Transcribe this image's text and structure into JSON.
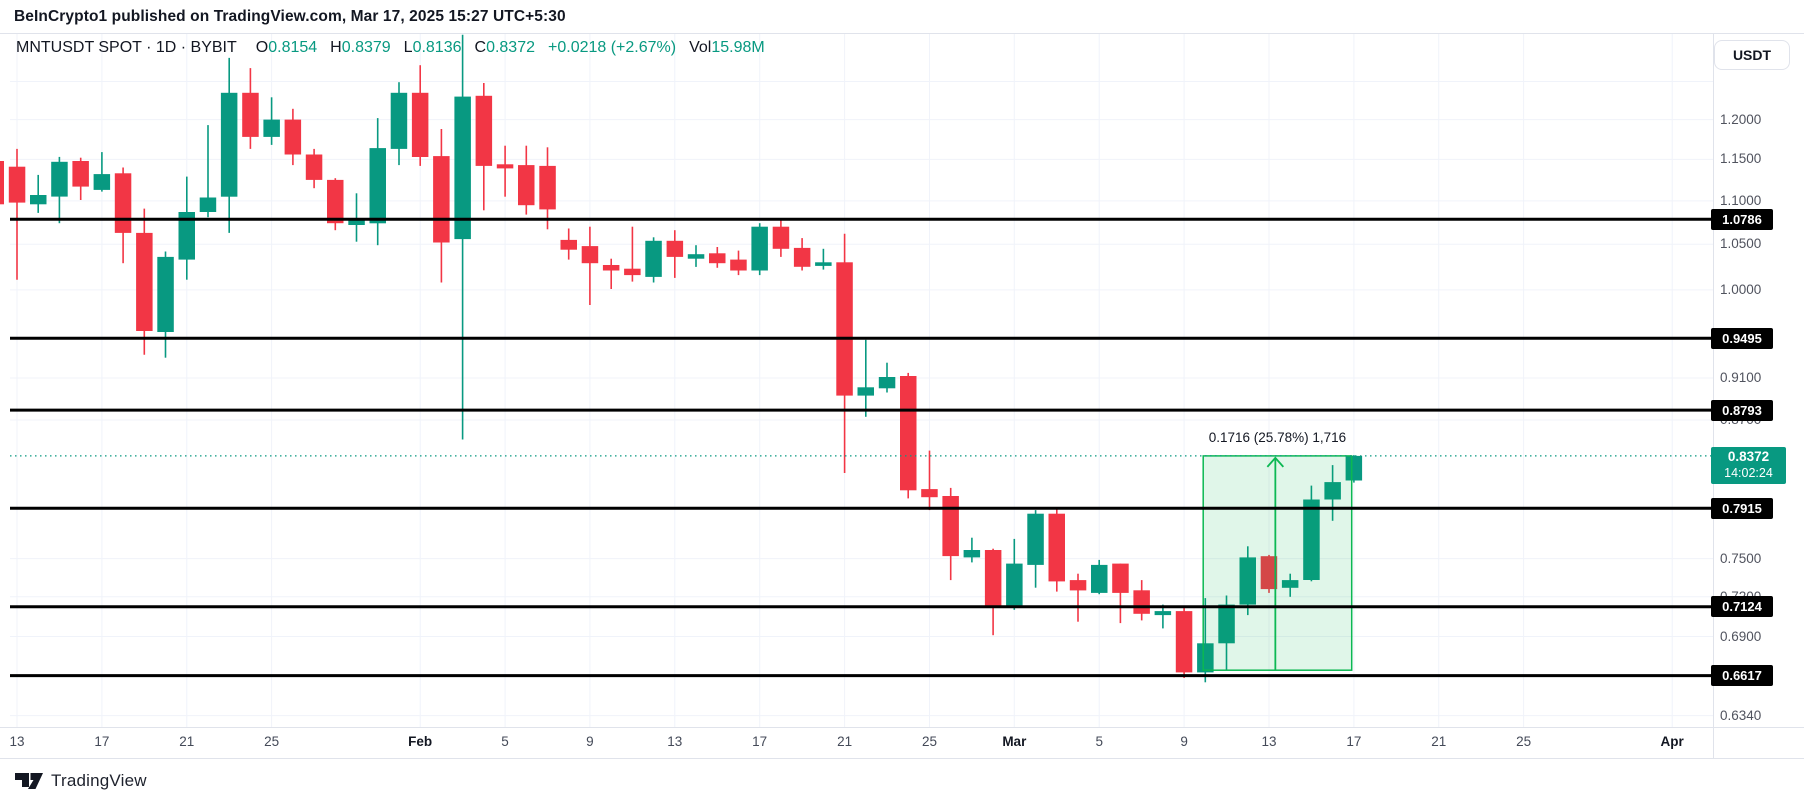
{
  "header": {
    "byline": "BeInCrypto1 published on TradingView.com, Mar 17, 2025 15:27 UTC+5:30"
  },
  "legend": {
    "symbol": "MNTUSDT SPOT · 1D · BYBIT",
    "items": [
      {
        "label": "O",
        "value": "0.8154"
      },
      {
        "label": "H",
        "value": "0.8379"
      },
      {
        "label": "L",
        "value": "0.8136"
      },
      {
        "label": "C",
        "value": "0.8372"
      }
    ],
    "change": "+0.0218 (+2.67%)",
    "vol_label": "Vol",
    "vol_value": "15.98M"
  },
  "axis": {
    "currency_button": "USDT",
    "plain_labels": [
      {
        "text": "1.2000",
        "price": 1.2
      },
      {
        "text": "1.1500",
        "price": 1.15
      },
      {
        "text": "1.1000",
        "price": 1.1
      },
      {
        "text": "1.0500",
        "price": 1.05
      },
      {
        "text": "1.0000",
        "price": 1.0
      },
      {
        "text": "0.9100",
        "price": 0.91
      },
      {
        "text": "0.8700",
        "price": 0.87
      },
      {
        "text": "0.7500",
        "price": 0.75
      },
      {
        "text": "0.7200",
        "price": 0.72
      },
      {
        "text": "0.6900",
        "price": 0.69
      },
      {
        "text": "0.6340",
        "price": 0.634
      }
    ],
    "current": {
      "price_text": "0.8372",
      "countdown": "14:02:24",
      "price": 0.8372
    }
  },
  "footer": {
    "brand": "TradingView"
  },
  "colors": {
    "up": "#089981",
    "down": "#f23645",
    "accent": "#089981",
    "ray": "#000000",
    "badge_bg": "#000000",
    "badge_text": "#ffffff",
    "current_badge_bg": "#089981",
    "grid": "#f0f3fa",
    "frame": "#e0e3eb",
    "box_line": "#0cb853",
    "box_fill": "rgba(12,184,83,0.13)",
    "text_dark": "#131722"
  },
  "chart_data": {
    "type": "candlestick",
    "symbol": "MNTUSDT",
    "interval": "1D",
    "exchange": "BYBIT",
    "scale": "log",
    "y_axis": {
      "top_price": 1.3166,
      "bottom_price": 0.6263
    },
    "grid_prices": [
      1.25,
      1.2,
      1.15,
      1.1,
      1.05,
      1.0,
      0.95,
      0.91,
      0.87,
      0.75,
      0.72,
      0.69,
      0.634
    ],
    "ray_levels": [
      1.0786,
      0.9495,
      0.8793,
      0.7915,
      0.7124,
      0.6617
    ],
    "current_price": 0.8372,
    "time_ticks": [
      {
        "label": "13",
        "i": 0
      },
      {
        "label": "17",
        "i": 4
      },
      {
        "label": "21",
        "i": 8
      },
      {
        "label": "25",
        "i": 12
      },
      {
        "label": "Feb",
        "i": 19,
        "bold": true
      },
      {
        "label": "5",
        "i": 23
      },
      {
        "label": "9",
        "i": 27
      },
      {
        "label": "13",
        "i": 31
      },
      {
        "label": "17",
        "i": 35
      },
      {
        "label": "21",
        "i": 39
      },
      {
        "label": "25",
        "i": 43
      },
      {
        "label": "Mar",
        "i": 47,
        "bold": true
      },
      {
        "label": "5",
        "i": 51
      },
      {
        "label": "9",
        "i": 55
      },
      {
        "label": "13",
        "i": 59
      },
      {
        "label": "17",
        "i": 63
      },
      {
        "label": "21",
        "i": 67
      },
      {
        "label": "25",
        "i": 71
      },
      {
        "label": "Apr",
        "i": 78,
        "bold": true
      }
    ],
    "measurement": {
      "text": "0.1716 (25.78%) 1,716",
      "price_from": 0.6656,
      "price_to": 0.8372,
      "i_from": 55.9,
      "i_to": 62.9,
      "arrow_i": 59.3,
      "label_y_offset": -26
    },
    "candles": [
      {
        "i": -1,
        "d": "Jan 12",
        "o": 1.148,
        "h": 1.155,
        "l": 1.07,
        "c": 1.096
      },
      {
        "i": 0,
        "d": "Jan 13",
        "o": 1.141,
        "h": 1.163,
        "l": 1.011,
        "c": 1.098
      },
      {
        "i": 1,
        "d": "Jan 14",
        "o": 1.096,
        "h": 1.131,
        "l": 1.086,
        "c": 1.107
      },
      {
        "i": 2,
        "d": "Jan 15",
        "o": 1.105,
        "h": 1.153,
        "l": 1.074,
        "c": 1.147
      },
      {
        "i": 3,
        "d": "Jan 16",
        "o": 1.148,
        "h": 1.152,
        "l": 1.101,
        "c": 1.117
      },
      {
        "i": 4,
        "d": "Jan 17",
        "o": 1.113,
        "h": 1.159,
        "l": 1.111,
        "c": 1.132
      },
      {
        "i": 5,
        "d": "Jan 18",
        "o": 1.133,
        "h": 1.14,
        "l": 1.029,
        "c": 1.063
      },
      {
        "i": 6,
        "d": "Jan 19",
        "o": 1.063,
        "h": 1.091,
        "l": 0.933,
        "c": 0.957
      },
      {
        "i": 7,
        "d": "Jan 20",
        "o": 0.956,
        "h": 1.042,
        "l": 0.93,
        "c": 1.036
      },
      {
        "i": 8,
        "d": "Jan 21",
        "o": 1.033,
        "h": 1.129,
        "l": 1.011,
        "c": 1.087
      },
      {
        "i": 9,
        "d": "Jan 22",
        "o": 1.087,
        "h": 1.193,
        "l": 1.081,
        "c": 1.104
      },
      {
        "i": 10,
        "d": "Jan 23",
        "o": 1.105,
        "h": 1.282,
        "l": 1.063,
        "c": 1.235
      },
      {
        "i": 11,
        "d": "Jan 24",
        "o": 1.235,
        "h": 1.268,
        "l": 1.163,
        "c": 1.178
      },
      {
        "i": 12,
        "d": "Jan 25",
        "o": 1.178,
        "h": 1.229,
        "l": 1.168,
        "c": 1.2
      },
      {
        "i": 13,
        "d": "Jan 26",
        "o": 1.2,
        "h": 1.214,
        "l": 1.143,
        "c": 1.156
      },
      {
        "i": 14,
        "d": "Jan 27",
        "o": 1.156,
        "h": 1.163,
        "l": 1.115,
        "c": 1.125
      },
      {
        "i": 15,
        "d": "Jan 28",
        "o": 1.125,
        "h": 1.127,
        "l": 1.066,
        "c": 1.074
      },
      {
        "i": 16,
        "d": "Jan 29",
        "o": 1.072,
        "h": 1.109,
        "l": 1.053,
        "c": 1.079
      },
      {
        "i": 17,
        "d": "Jan 30",
        "o": 1.074,
        "h": 1.202,
        "l": 1.049,
        "c": 1.164
      },
      {
        "i": 18,
        "d": "Jan 31",
        "o": 1.163,
        "h": 1.249,
        "l": 1.143,
        "c": 1.235
      },
      {
        "i": 19,
        "d": "Feb 1",
        "o": 1.235,
        "h": 1.272,
        "l": 1.142,
        "c": 1.153
      },
      {
        "i": 20,
        "d": "Feb 2",
        "o": 1.154,
        "h": 1.188,
        "l": 1.008,
        "c": 1.052
      },
      {
        "i": 21,
        "d": "Feb 3",
        "o": 1.056,
        "h": 1.314,
        "l": 0.852,
        "c": 1.23
      },
      {
        "i": 22,
        "d": "Feb 4",
        "o": 1.231,
        "h": 1.248,
        "l": 1.089,
        "c": 1.142
      },
      {
        "i": 23,
        "d": "Feb 5",
        "o": 1.144,
        "h": 1.167,
        "l": 1.105,
        "c": 1.139
      },
      {
        "i": 24,
        "d": "Feb 6",
        "o": 1.143,
        "h": 1.167,
        "l": 1.084,
        "c": 1.095
      },
      {
        "i": 25,
        "d": "Feb 7",
        "o": 1.142,
        "h": 1.165,
        "l": 1.067,
        "c": 1.09
      },
      {
        "i": 26,
        "d": "Feb 8",
        "o": 1.055,
        "h": 1.068,
        "l": 1.033,
        "c": 1.044
      },
      {
        "i": 27,
        "d": "Feb 9",
        "o": 1.048,
        "h": 1.07,
        "l": 0.984,
        "c": 1.029
      },
      {
        "i": 28,
        "d": "Feb 10",
        "o": 1.027,
        "h": 1.034,
        "l": 1.001,
        "c": 1.021
      },
      {
        "i": 29,
        "d": "Feb 11",
        "o": 1.023,
        "h": 1.07,
        "l": 1.009,
        "c": 1.016
      },
      {
        "i": 30,
        "d": "Feb 12",
        "o": 1.014,
        "h": 1.058,
        "l": 1.008,
        "c": 1.054
      },
      {
        "i": 31,
        "d": "Feb 13",
        "o": 1.054,
        "h": 1.066,
        "l": 1.013,
        "c": 1.036
      },
      {
        "i": 32,
        "d": "Feb 14",
        "o": 1.034,
        "h": 1.049,
        "l": 1.025,
        "c": 1.039
      },
      {
        "i": 33,
        "d": "Feb 15",
        "o": 1.04,
        "h": 1.047,
        "l": 1.024,
        "c": 1.029
      },
      {
        "i": 34,
        "d": "Feb 16",
        "o": 1.033,
        "h": 1.043,
        "l": 1.016,
        "c": 1.021
      },
      {
        "i": 35,
        "d": "Feb 17",
        "o": 1.021,
        "h": 1.074,
        "l": 1.016,
        "c": 1.07
      },
      {
        "i": 36,
        "d": "Feb 18",
        "o": 1.07,
        "h": 1.078,
        "l": 1.036,
        "c": 1.045
      },
      {
        "i": 37,
        "d": "Feb 19",
        "o": 1.046,
        "h": 1.057,
        "l": 1.021,
        "c": 1.025
      },
      {
        "i": 38,
        "d": "Feb 20",
        "o": 1.026,
        "h": 1.045,
        "l": 1.022,
        "c": 1.03
      },
      {
        "i": 39,
        "d": "Feb 21",
        "o": 1.03,
        "h": 1.062,
        "l": 0.822,
        "c": 0.893
      },
      {
        "i": 40,
        "d": "Feb 22",
        "o": 0.893,
        "h": 0.948,
        "l": 0.873,
        "c": 0.901
      },
      {
        "i": 41,
        "d": "Feb 23",
        "o": 0.9,
        "h": 0.925,
        "l": 0.896,
        "c": 0.911
      },
      {
        "i": 42,
        "d": "Feb 24",
        "o": 0.912,
        "h": 0.915,
        "l": 0.8,
        "c": 0.807
      },
      {
        "i": 43,
        "d": "Feb 25",
        "o": 0.808,
        "h": 0.842,
        "l": 0.79,
        "c": 0.801
      },
      {
        "i": 44,
        "d": "Feb 26",
        "o": 0.802,
        "h": 0.809,
        "l": 0.733,
        "c": 0.752
      },
      {
        "i": 45,
        "d": "Feb 27",
        "o": 0.751,
        "h": 0.767,
        "l": 0.747,
        "c": 0.757
      },
      {
        "i": 46,
        "d": "Feb 28",
        "o": 0.757,
        "h": 0.758,
        "l": 0.691,
        "c": 0.713
      },
      {
        "i": 47,
        "d": "Mar 1",
        "o": 0.713,
        "h": 0.766,
        "l": 0.71,
        "c": 0.746
      },
      {
        "i": 48,
        "d": "Mar 2",
        "o": 0.745,
        "h": 0.79,
        "l": 0.727,
        "c": 0.787
      },
      {
        "i": 49,
        "d": "Mar 3",
        "o": 0.787,
        "h": 0.791,
        "l": 0.724,
        "c": 0.732
      },
      {
        "i": 50,
        "d": "Mar 4",
        "o": 0.733,
        "h": 0.738,
        "l": 0.701,
        "c": 0.725
      },
      {
        "i": 51,
        "d": "Mar 5",
        "o": 0.723,
        "h": 0.749,
        "l": 0.722,
        "c": 0.745
      },
      {
        "i": 52,
        "d": "Mar 6",
        "o": 0.746,
        "h": 0.746,
        "l": 0.7,
        "c": 0.723
      },
      {
        "i": 53,
        "d": "Mar 7",
        "o": 0.725,
        "h": 0.733,
        "l": 0.702,
        "c": 0.707
      },
      {
        "i": 54,
        "d": "Mar 8",
        "o": 0.706,
        "h": 0.714,
        "l": 0.696,
        "c": 0.709
      },
      {
        "i": 55,
        "d": "Mar 9",
        "o": 0.709,
        "h": 0.713,
        "l": 0.66,
        "c": 0.664
      },
      {
        "i": 56,
        "d": "Mar 10",
        "o": 0.664,
        "h": 0.719,
        "l": 0.657,
        "c": 0.685
      },
      {
        "i": 57,
        "d": "Mar 11",
        "o": 0.685,
        "h": 0.721,
        "l": 0.666,
        "c": 0.714
      },
      {
        "i": 58,
        "d": "Mar 12",
        "o": 0.714,
        "h": 0.76,
        "l": 0.706,
        "c": 0.751
      },
      {
        "i": 59,
        "d": "Mar 13",
        "o": 0.752,
        "h": 0.753,
        "l": 0.723,
        "c": 0.726
      },
      {
        "i": 60,
        "d": "Mar 14",
        "o": 0.727,
        "h": 0.738,
        "l": 0.72,
        "c": 0.733
      },
      {
        "i": 61,
        "d": "Mar 15",
        "o": 0.733,
        "h": 0.811,
        "l": 0.732,
        "c": 0.799
      },
      {
        "i": 62,
        "d": "Mar 16",
        "o": 0.799,
        "h": 0.829,
        "l": 0.781,
        "c": 0.814
      },
      {
        "i": 63,
        "d": "Mar 17",
        "o": 0.8154,
        "h": 0.8379,
        "l": 0.8136,
        "c": 0.8372
      }
    ]
  }
}
